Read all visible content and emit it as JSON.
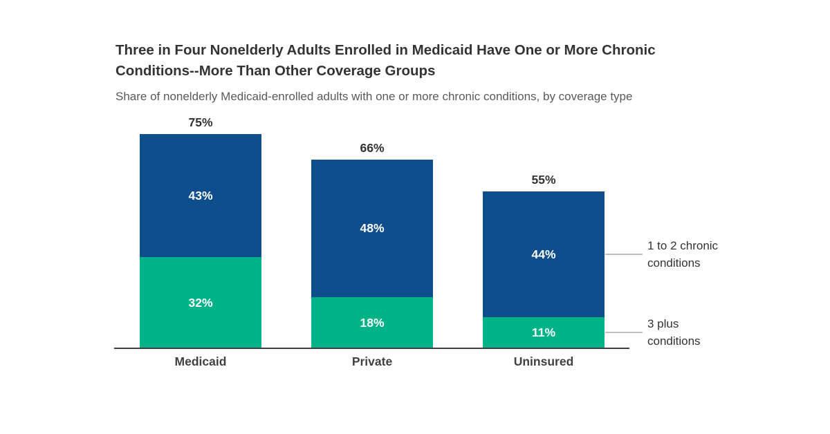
{
  "header": {
    "title": "Three in Four Nonelderly Adults Enrolled in Medicaid Have One or More Chronic Conditions--More Than Other Coverage Groups",
    "subtitle": "Share of nonelderly Medicaid-enrolled adults with one or more chronic conditions, by coverage type"
  },
  "chart_data": {
    "type": "bar",
    "stacked": true,
    "orientation": "vertical",
    "categories": [
      "Medicaid",
      "Private",
      "Uninsured"
    ],
    "series": [
      {
        "name": "3 plus conditions",
        "color": "#00B287",
        "values": [
          32,
          18,
          11
        ],
        "labels": [
          "32%",
          "18%",
          "11%"
        ]
      },
      {
        "name": "1 to 2 chronic conditions",
        "color": "#0E4E8C",
        "values": [
          43,
          48,
          44
        ],
        "labels": [
          "43%",
          "48%",
          "44%"
        ]
      }
    ],
    "totals": {
      "values": [
        75,
        66,
        55
      ],
      "labels": [
        "75%",
        "66%",
        "55%"
      ]
    },
    "xlabel": "",
    "ylabel": "",
    "y_axis_visible": false,
    "grid": false,
    "data_labels": "inside-white-bold",
    "total_labels": "above-bars",
    "legend_position": "right-annotations"
  },
  "colors": {
    "background": "#FFFFFF",
    "title_text": "#333333",
    "subtitle_text": "#595959",
    "axis_line": "#404040",
    "category_label": "#404040",
    "total_label": "#333333",
    "inside_label": "#FFFFFF",
    "connector_line": "#BFBFBF",
    "legend_text": "#333333"
  }
}
